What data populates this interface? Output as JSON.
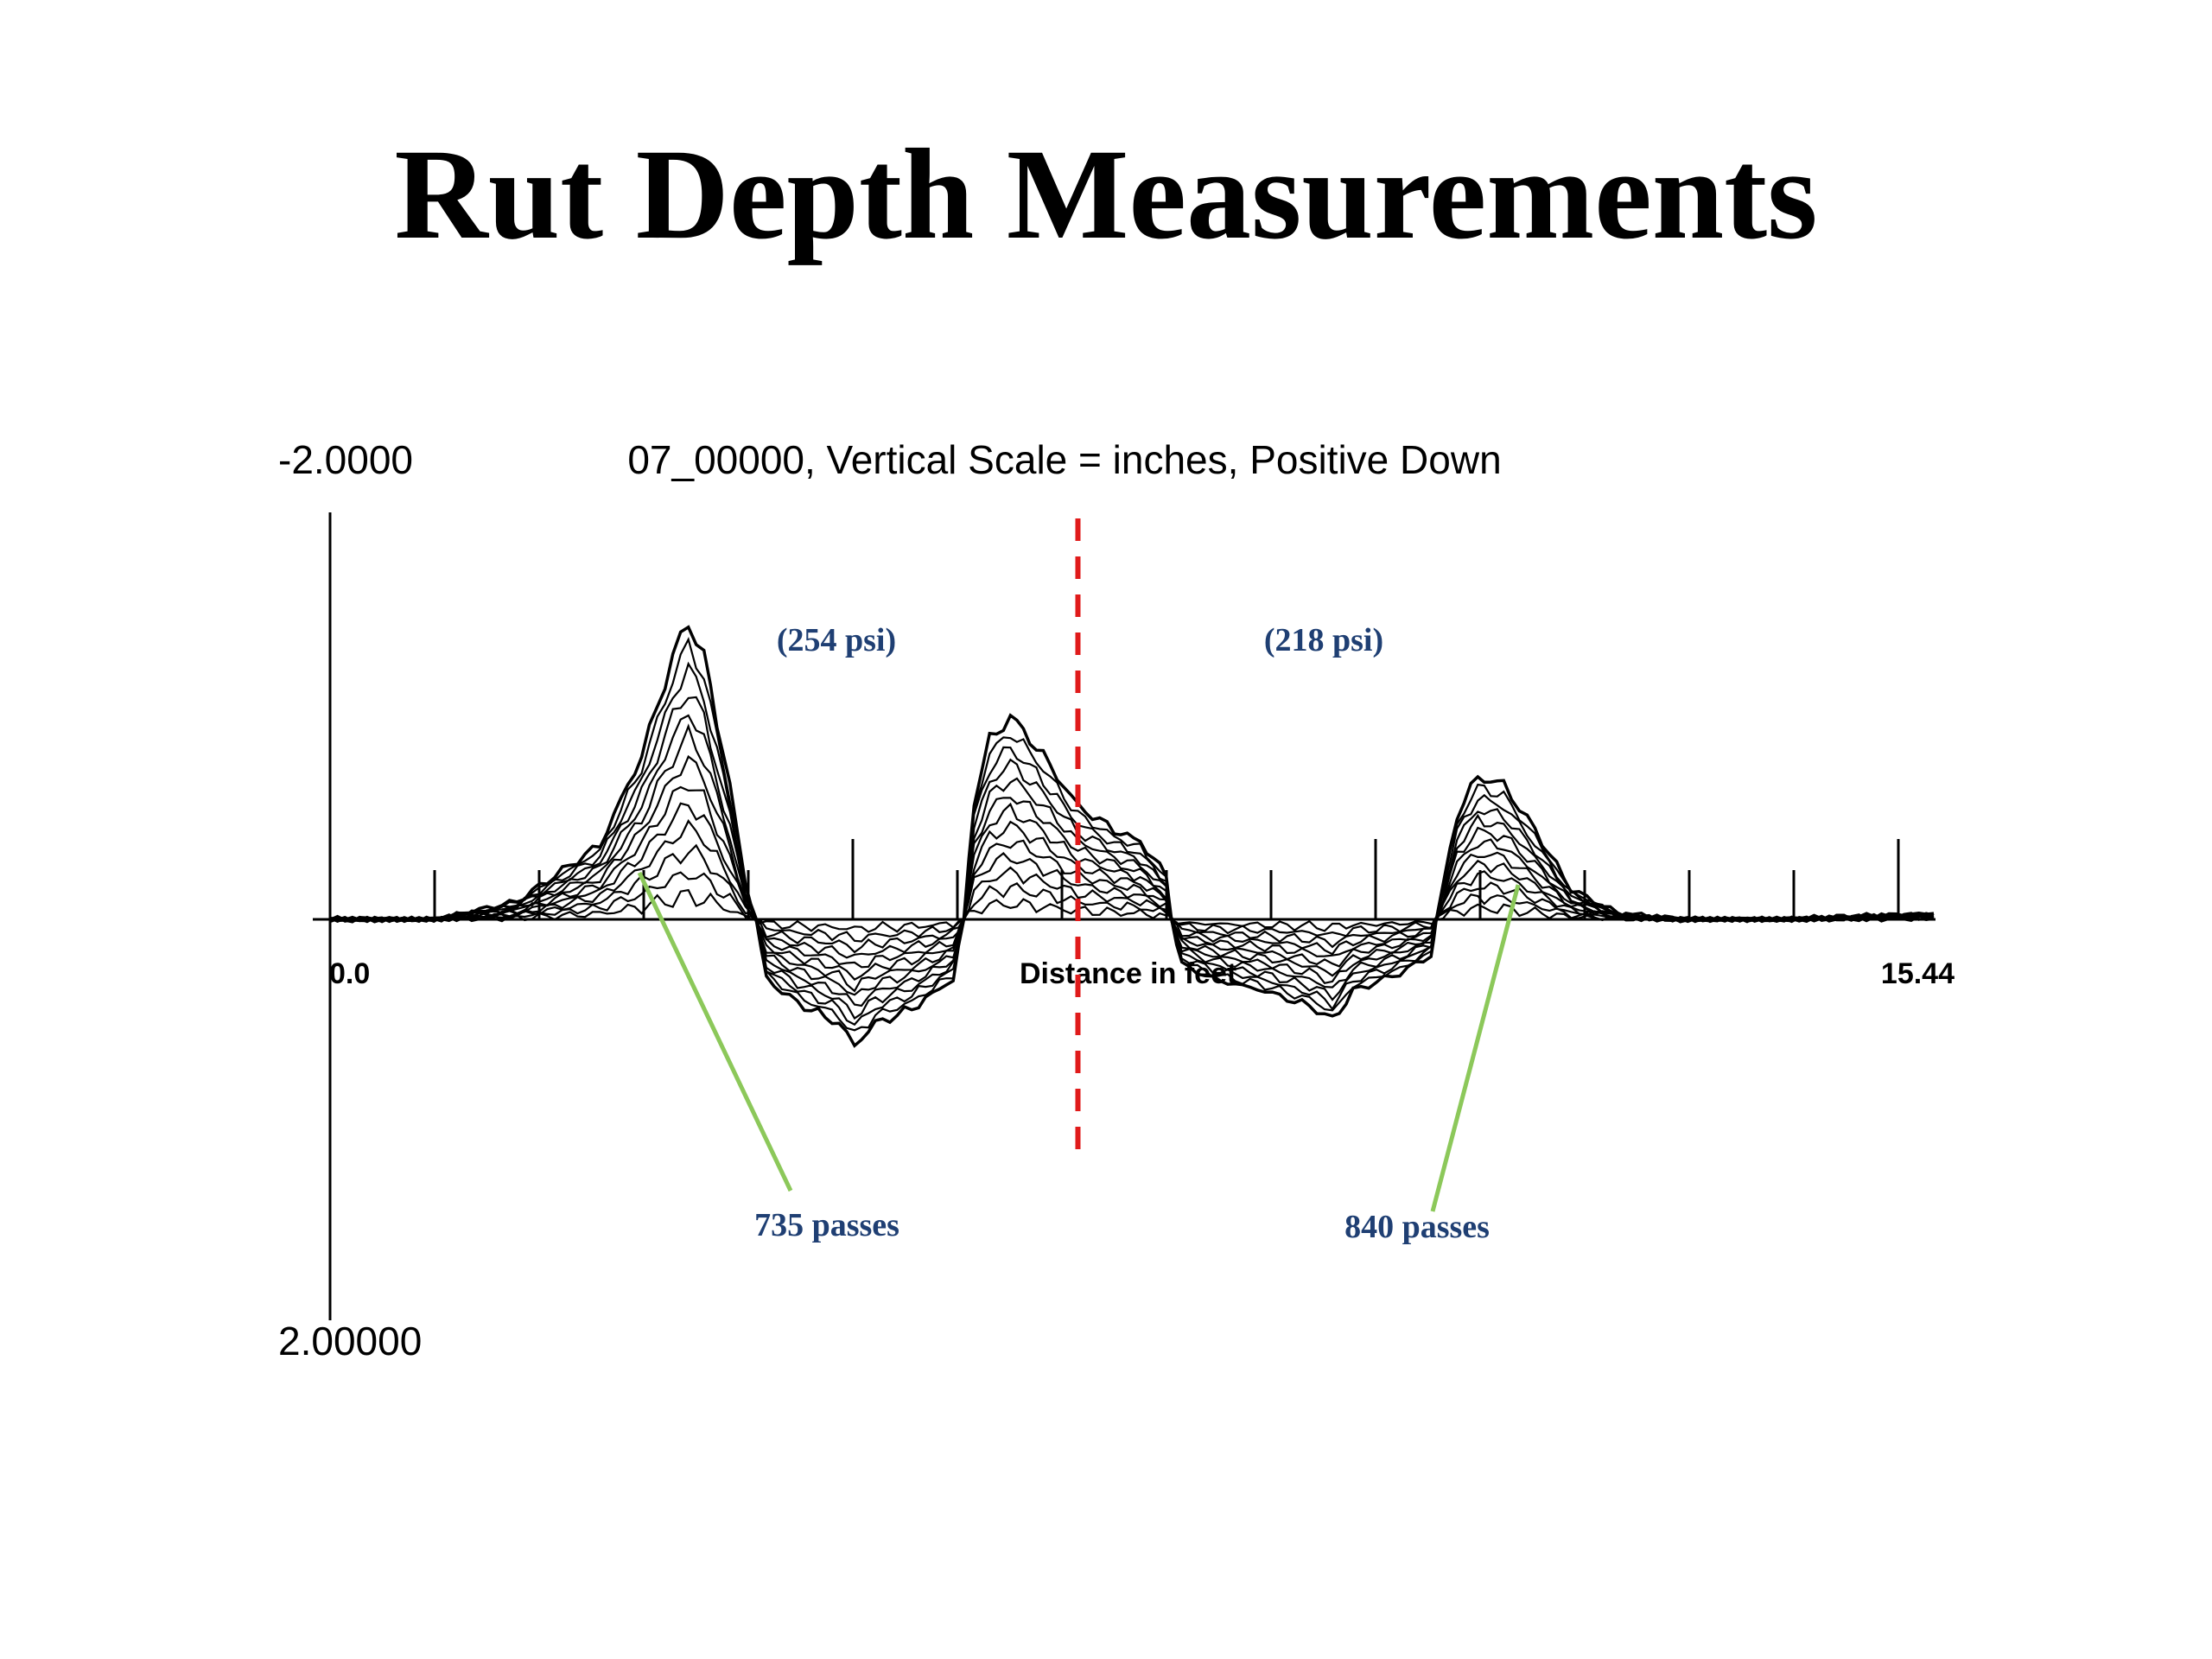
{
  "slide": {
    "title": "Rut Depth Measurements"
  },
  "chart_data": {
    "type": "line",
    "title": "07_00000, Vertical Scale = inches, Positive Down",
    "y_axis": {
      "top_label": "-2.0000",
      "bottom_label": "2.00000",
      "range": [
        -2.0,
        2.0
      ],
      "positive_down": true
    },
    "x_axis": {
      "min_label": "0.0",
      "max_label": "15.44",
      "label": "Distance in feet",
      "range": [
        0.0,
        15.44
      ]
    },
    "divider_x": 7.2,
    "divider_color": "#e01b1b",
    "text_color": "#1f3f73",
    "leader_color": "#8cc85a",
    "annotations": {
      "left_pressure": "(254 psi)",
      "right_pressure": "(218 psi)",
      "left_passes": "735 passes",
      "right_passes": "840 passes"
    },
    "profile_count": 13,
    "final_profile": [
      [
        0.0,
        0.0
      ],
      [
        1.0,
        0.0
      ],
      [
        1.8,
        -0.06
      ],
      [
        2.6,
        -0.25
      ],
      [
        3.0,
        -0.55
      ],
      [
        3.3,
        -0.88
      ],
      [
        3.45,
        -1.0
      ],
      [
        3.6,
        -0.88
      ],
      [
        3.85,
        -0.45
      ],
      [
        4.0,
        -0.12
      ],
      [
        4.1,
        0.0
      ],
      [
        4.2,
        0.2
      ],
      [
        4.5,
        0.28
      ],
      [
        4.9,
        0.35
      ],
      [
        5.05,
        0.42
      ],
      [
        5.25,
        0.35
      ],
      [
        5.6,
        0.3
      ],
      [
        6.0,
        0.2
      ],
      [
        6.1,
        0.0
      ],
      [
        6.2,
        -0.4
      ],
      [
        6.35,
        -0.6
      ],
      [
        6.55,
        -0.68
      ],
      [
        6.8,
        -0.58
      ],
      [
        7.2,
        -0.38
      ],
      [
        7.55,
        -0.3
      ],
      [
        7.8,
        -0.26
      ],
      [
        8.05,
        -0.15
      ],
      [
        8.1,
        0.0
      ],
      [
        8.2,
        0.15
      ],
      [
        8.5,
        0.2
      ],
      [
        9.0,
        0.24
      ],
      [
        9.5,
        0.3
      ],
      [
        9.65,
        0.34
      ],
      [
        9.85,
        0.24
      ],
      [
        10.3,
        0.18
      ],
      [
        10.6,
        0.12
      ],
      [
        10.65,
        0.0
      ],
      [
        10.85,
        -0.35
      ],
      [
        11.05,
        -0.48
      ],
      [
        11.3,
        -0.45
      ],
      [
        11.6,
        -0.3
      ],
      [
        11.95,
        -0.1
      ],
      [
        12.4,
        -0.02
      ],
      [
        13.0,
        0.0
      ],
      [
        14.0,
        0.0
      ],
      [
        15.44,
        -0.02
      ]
    ]
  }
}
